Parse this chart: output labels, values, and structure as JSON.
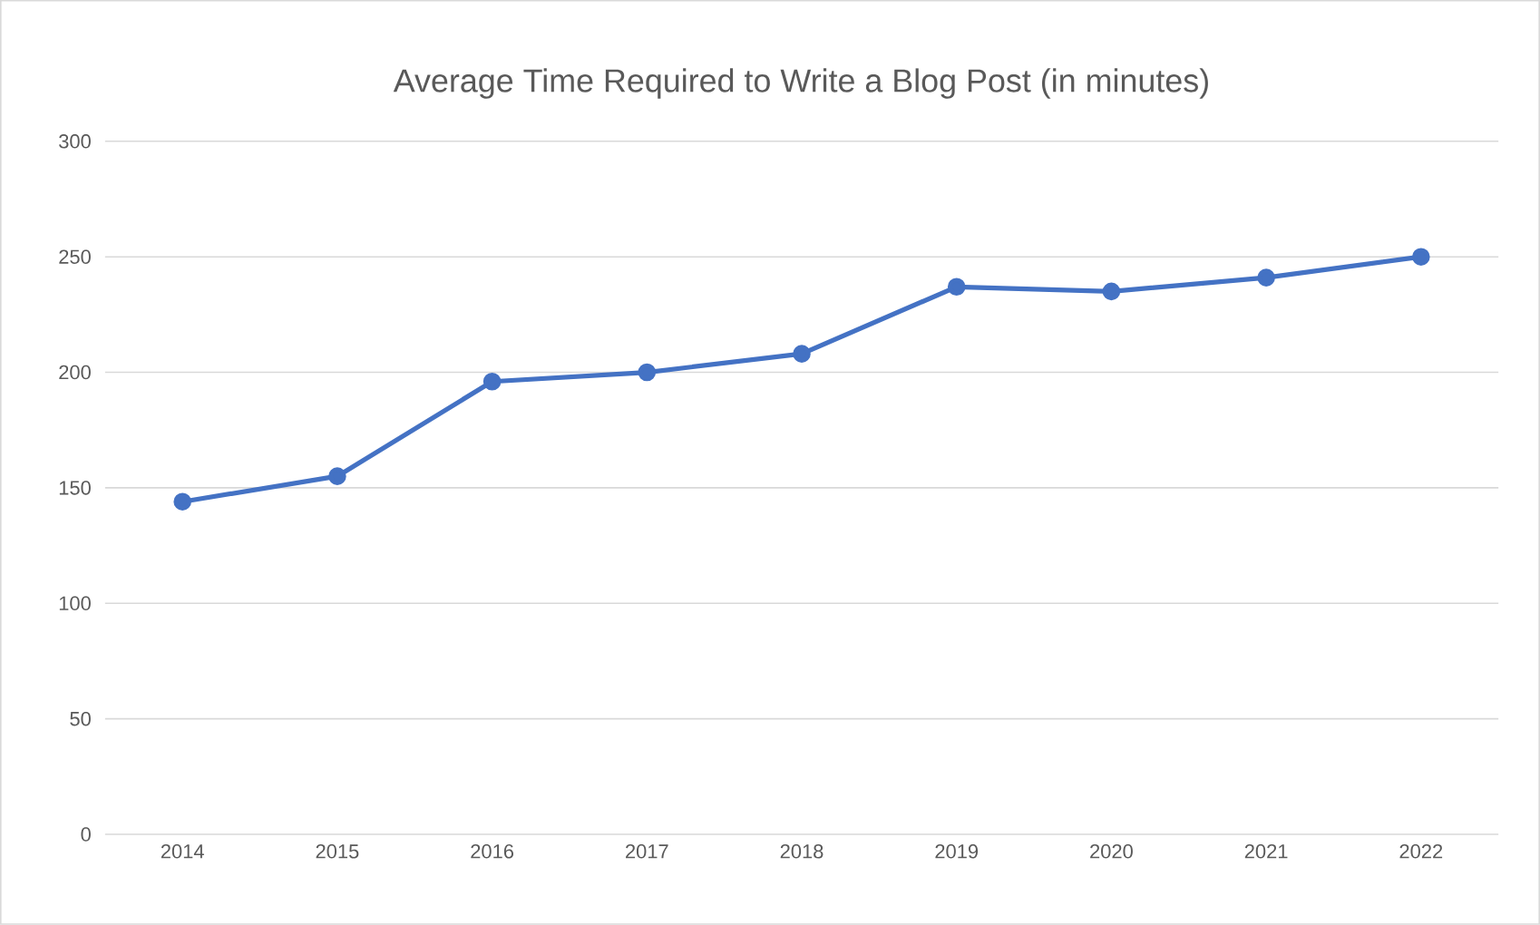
{
  "chart_data": {
    "type": "line",
    "title": "Average Time Required to Write a Blog Post (in minutes)",
    "categories": [
      "2014",
      "2015",
      "2016",
      "2017",
      "2018",
      "2019",
      "2020",
      "2021",
      "2022"
    ],
    "series": [
      {
        "color": "#4472c4",
        "values": [
          144,
          155,
          196,
          200,
          208,
          237,
          235,
          241,
          250
        ]
      }
    ],
    "ylim": [
      0,
      300
    ],
    "yticks": [
      0,
      50,
      100,
      150,
      200,
      250,
      300
    ],
    "grid": "y",
    "marker": "circle",
    "line_style": "solid"
  }
}
